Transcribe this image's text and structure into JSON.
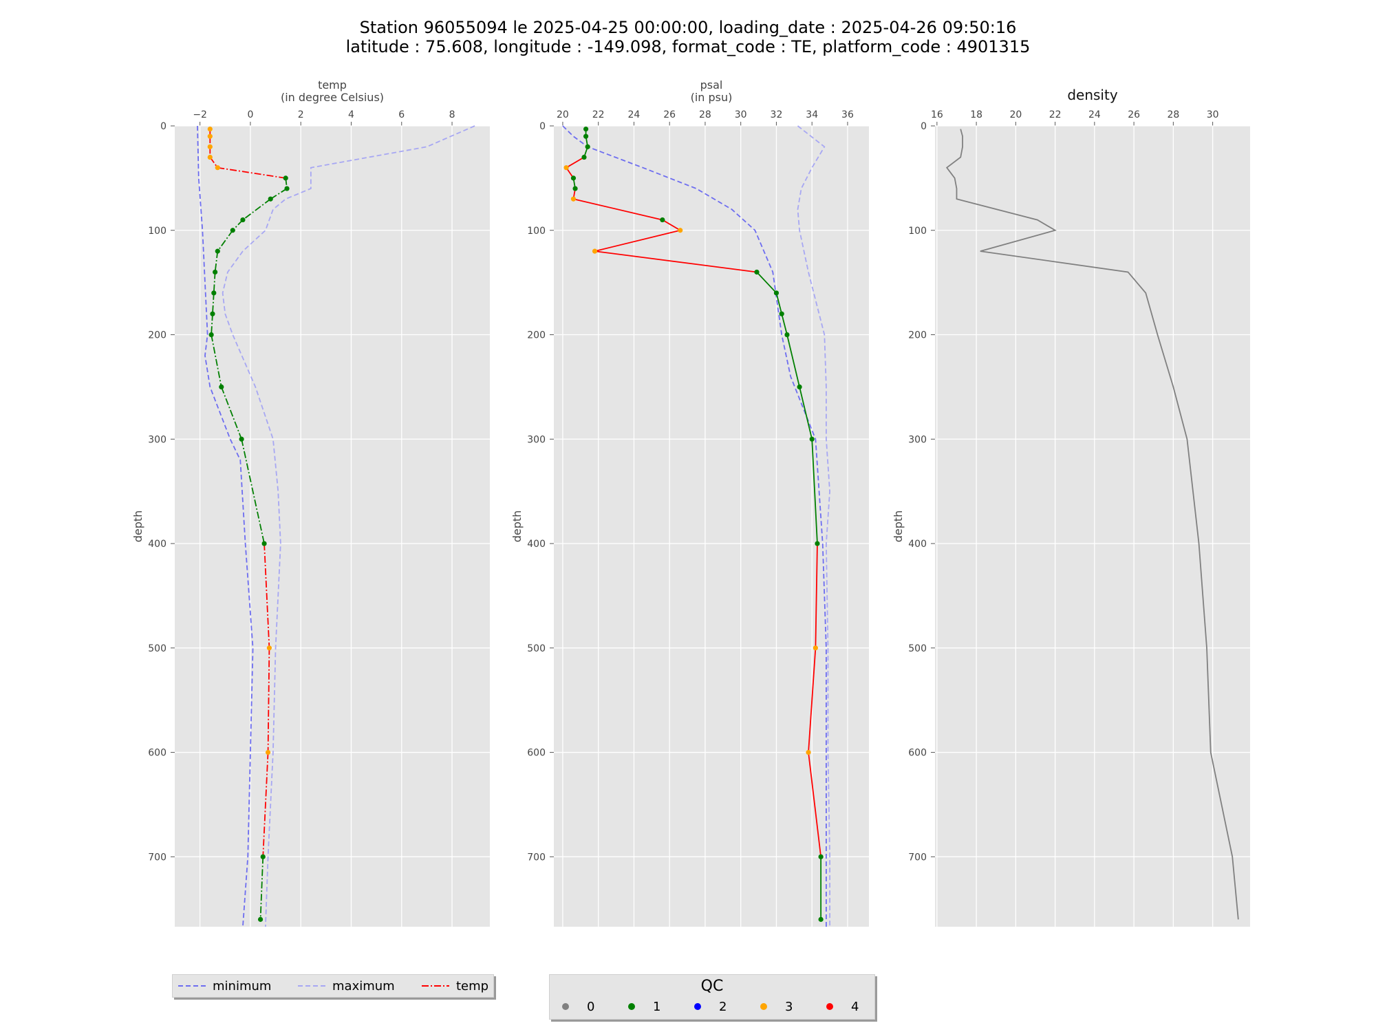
{
  "title": {
    "line1": "Station 96055094 le 2025-04-25 00:00:00, loading_date : 2025-04-26 09:50:16",
    "line2": "latitude : 75.608, longitude : -149.098, format_code : TE, platform_code : 4901315"
  },
  "colors": {
    "panel_bg": "#e5e5e5",
    "grid": "#ffffff",
    "minimum": "#6d6df0",
    "maximum": "#a7a7f3",
    "bad_line": "#ff0000",
    "good_line": "#007f00",
    "density_line": "#808080",
    "qc0": "#808080",
    "qc1": "#008000",
    "qc2": "#0000ff",
    "qc3": "#ffa500",
    "qc4": "#ff0000"
  },
  "legend": {
    "minimum_label": "minimum",
    "maximum_label": "maximum",
    "temp_label": "temp"
  },
  "qc_legend": {
    "title": "QC",
    "items": [
      "0",
      "1",
      "2",
      "3",
      "4"
    ]
  },
  "chart_data": [
    {
      "type": "line",
      "title": "temp\n(in degree Celsius)",
      "xlabel": "temp",
      "xunit": "(in degree Celsius)",
      "ylabel": "depth",
      "xlim": [
        -3,
        9.5
      ],
      "ylim": [
        767,
        0
      ],
      "xticks": [
        -2,
        0,
        2,
        4,
        6,
        8
      ],
      "yticks": [
        0,
        100,
        200,
        300,
        400,
        500,
        600,
        700
      ],
      "grid": true,
      "line_style": "dashdot",
      "series": [
        {
          "name": "minimum",
          "style": "dashed",
          "depth": [
            0,
            50,
            100,
            150,
            200,
            220,
            250,
            300,
            320,
            400,
            500,
            600,
            700,
            767
          ],
          "values": [
            -2.1,
            -2.05,
            -1.9,
            -1.8,
            -1.7,
            -1.8,
            -1.6,
            -0.8,
            -0.4,
            -0.2,
            0.1,
            0.0,
            -0.1,
            -0.3
          ]
        },
        {
          "name": "maximum",
          "style": "dashed",
          "depth": [
            0,
            20,
            40,
            60,
            70,
            80,
            100,
            120,
            140,
            160,
            180,
            200,
            250,
            300,
            350,
            400,
            500,
            600,
            700,
            767
          ],
          "values": [
            8.9,
            7.0,
            2.4,
            2.4,
            1.4,
            0.9,
            0.6,
            -0.3,
            -0.9,
            -1.1,
            -1.0,
            -0.7,
            0.2,
            0.9,
            1.1,
            1.2,
            1.0,
            0.9,
            0.7,
            0.6
          ]
        },
        {
          "name": "temp",
          "depth": [
            3,
            10,
            20,
            30,
            40,
            50,
            60,
            70,
            90,
            100,
            120,
            140,
            160,
            180,
            200,
            250,
            300,
            400,
            500,
            600,
            700,
            760
          ],
          "values": [
            -1.6,
            -1.6,
            -1.6,
            -1.6,
            -1.3,
            1.4,
            1.45,
            0.8,
            -0.3,
            -0.7,
            -1.3,
            -1.4,
            -1.45,
            -1.5,
            -1.55,
            -1.15,
            -0.35,
            0.55,
            0.75,
            0.7,
            0.5,
            0.4
          ],
          "qc": [
            3,
            3,
            3,
            3,
            3,
            1,
            1,
            1,
            1,
            1,
            1,
            1,
            1,
            1,
            1,
            1,
            1,
            1,
            3,
            3,
            1,
            1
          ]
        }
      ]
    },
    {
      "type": "line",
      "title": "psal\n(in psu)",
      "xlabel": "psal",
      "xunit": "(in psu)",
      "ylabel": "depth",
      "xlim": [
        19.5,
        37.2
      ],
      "ylim": [
        767,
        0
      ],
      "xticks": [
        20,
        22,
        24,
        26,
        28,
        30,
        32,
        34,
        36
      ],
      "yticks": [
        0,
        100,
        200,
        300,
        400,
        500,
        600,
        700
      ],
      "grid": true,
      "line_style": "solid",
      "series": [
        {
          "name": "minimum",
          "style": "dashed",
          "depth": [
            0,
            10,
            20,
            40,
            60,
            80,
            100,
            140,
            200,
            240,
            300,
            400,
            500,
            600,
            700,
            767
          ],
          "values": [
            20.0,
            20.6,
            21.4,
            24.5,
            27.5,
            29.5,
            30.8,
            31.8,
            32.3,
            32.8,
            34.2,
            34.6,
            34.8,
            34.8,
            34.8,
            34.8
          ],
          "_max_shape_note": ""
        },
        {
          "name": "maximum",
          "style": "dashed",
          "depth": [
            0,
            20,
            40,
            60,
            80,
            100,
            140,
            200,
            250,
            300,
            350,
            400,
            500,
            600,
            700,
            767
          ],
          "values": [
            33.2,
            34.7,
            34.0,
            33.4,
            33.2,
            33.3,
            33.8,
            34.7,
            34.8,
            34.8,
            35.0,
            34.8,
            34.9,
            34.9,
            35.0,
            35.0
          ]
        },
        {
          "name": "psal",
          "depth": [
            3,
            10,
            20,
            30,
            40,
            50,
            60,
            70,
            90,
            100,
            120,
            140,
            160,
            180,
            200,
            250,
            300,
            400,
            500,
            600,
            700,
            760
          ],
          "values": [
            21.3,
            21.3,
            21.4,
            21.2,
            20.2,
            20.6,
            20.7,
            20.6,
            25.6,
            26.6,
            21.8,
            30.9,
            32.0,
            32.3,
            32.6,
            33.3,
            34.0,
            34.3,
            34.2,
            33.8,
            34.5,
            34.5
          ],
          "qc": [
            1,
            1,
            1,
            1,
            3,
            1,
            1,
            3,
            1,
            3,
            3,
            1,
            1,
            1,
            1,
            1,
            1,
            1,
            3,
            3,
            1,
            1
          ]
        }
      ]
    },
    {
      "type": "line",
      "title": "density",
      "xlabel": "density",
      "ylabel": "depth",
      "xlim": [
        15.9,
        31.9
      ],
      "ylim": [
        767,
        0
      ],
      "xticks": [
        16,
        18,
        20,
        22,
        24,
        26,
        28,
        30
      ],
      "yticks": [
        0,
        100,
        200,
        300,
        400,
        500,
        600,
        700
      ],
      "grid": true,
      "series": [
        {
          "name": "density",
          "depth": [
            3,
            10,
            20,
            30,
            40,
            50,
            60,
            70,
            90,
            100,
            120,
            140,
            160,
            180,
            200,
            250,
            300,
            400,
            500,
            600,
            700,
            760
          ],
          "values": [
            17.2,
            17.3,
            17.3,
            17.2,
            16.5,
            16.9,
            17.0,
            17.0,
            21.1,
            22.0,
            18.2,
            25.7,
            26.6,
            26.9,
            27.2,
            28.0,
            28.7,
            29.3,
            29.7,
            29.9,
            31.0,
            31.3
          ]
        }
      ]
    }
  ]
}
